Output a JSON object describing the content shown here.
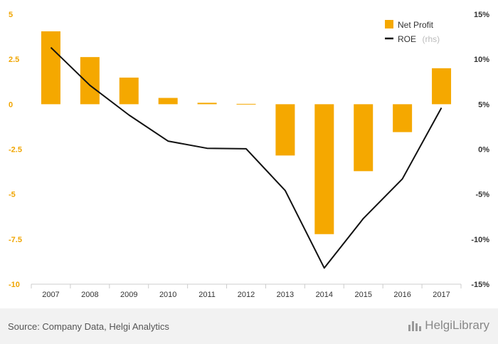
{
  "chart_data": {
    "type": "bar+line",
    "categories": [
      "2007",
      "2008",
      "2009",
      "2010",
      "2011",
      "2012",
      "2013",
      "2014",
      "2015",
      "2016",
      "2017"
    ],
    "series": [
      {
        "name": "Net Profit",
        "type": "bar",
        "axis": "left",
        "values": [
          4.05,
          2.62,
          1.48,
          0.35,
          0.08,
          0.02,
          -2.85,
          -7.22,
          -3.72,
          -1.55,
          2.0
        ]
      },
      {
        "name": "ROE",
        "type": "line",
        "axis": "right",
        "values": [
          11.3,
          7.1,
          3.8,
          0.9,
          0.1,
          0.05,
          -4.6,
          -13.2,
          -7.7,
          -3.3,
          4.6
        ]
      }
    ],
    "left_axis": {
      "min": -10,
      "max": 5,
      "ticks": [
        5,
        2.5,
        0,
        -2.5,
        -5,
        -7.5,
        -10
      ],
      "tick_labels": [
        "5",
        "2.5",
        "0",
        "-2.5",
        "-5",
        "-7.5",
        "-10"
      ]
    },
    "right_axis": {
      "min": -15,
      "max": 15,
      "ticks": [
        15,
        10,
        5,
        0,
        -5,
        -10,
        -15
      ],
      "tick_labels": [
        "15%",
        "10%",
        "5%",
        "0%",
        "-5%",
        "-10%",
        "-15%"
      ]
    },
    "legend": {
      "position": "top-right",
      "items": [
        {
          "label": "Net Profit",
          "note": ""
        },
        {
          "label": "ROE",
          "note": "(rhs)"
        }
      ]
    },
    "colors": {
      "bar": "#f5a800",
      "line": "#111111",
      "left_axis_text": "#f0a500",
      "right_axis_text": "#333333"
    },
    "grid": false
  },
  "footer": {
    "source": "Source: Company Data, Helgi Analytics",
    "brand": "HelgiLibrary"
  }
}
